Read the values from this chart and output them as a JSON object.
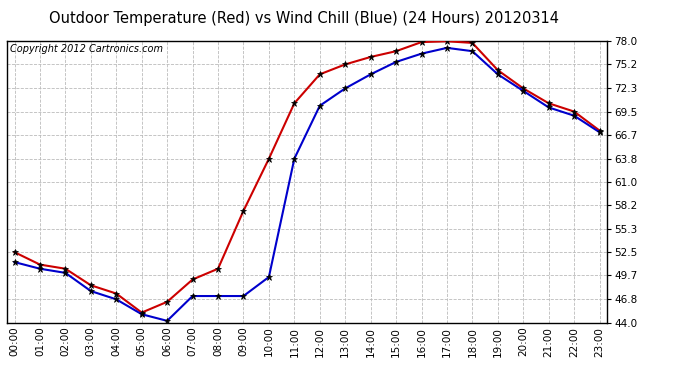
{
  "title": "Outdoor Temperature (Red) vs Wind Chill (Blue) (24 Hours) 20120314",
  "copyright": "Copyright 2012 Cartronics.com",
  "hours": [
    0,
    1,
    2,
    3,
    4,
    5,
    6,
    7,
    8,
    9,
    10,
    11,
    12,
    13,
    14,
    15,
    16,
    17,
    18,
    19,
    20,
    21,
    22,
    23
  ],
  "temp_red": [
    52.5,
    51.0,
    50.5,
    48.5,
    47.5,
    45.2,
    46.5,
    49.2,
    50.5,
    57.5,
    63.8,
    70.5,
    74.0,
    75.2,
    76.1,
    76.8,
    77.9,
    78.0,
    77.8,
    74.5,
    72.3,
    70.5,
    69.5,
    67.2
  ],
  "wind_chill_blue": [
    51.3,
    50.5,
    50.0,
    47.8,
    46.8,
    45.0,
    44.2,
    47.2,
    47.2,
    47.2,
    49.5,
    63.8,
    70.2,
    72.3,
    74.0,
    75.5,
    76.5,
    77.2,
    76.8,
    74.0,
    72.0,
    70.0,
    69.0,
    67.0
  ],
  "yticks": [
    44.0,
    46.8,
    49.7,
    52.5,
    55.3,
    58.2,
    61.0,
    63.8,
    66.7,
    69.5,
    72.3,
    75.2,
    78.0
  ],
  "ymin": 44.0,
  "ymax": 78.0,
  "red_color": "#cc0000",
  "blue_color": "#0000cc",
  "bg_color": "#ffffff",
  "grid_color": "#bbbbbb",
  "title_fontsize": 10.5,
  "copyright_fontsize": 7,
  "figwidth": 6.9,
  "figheight": 3.75
}
